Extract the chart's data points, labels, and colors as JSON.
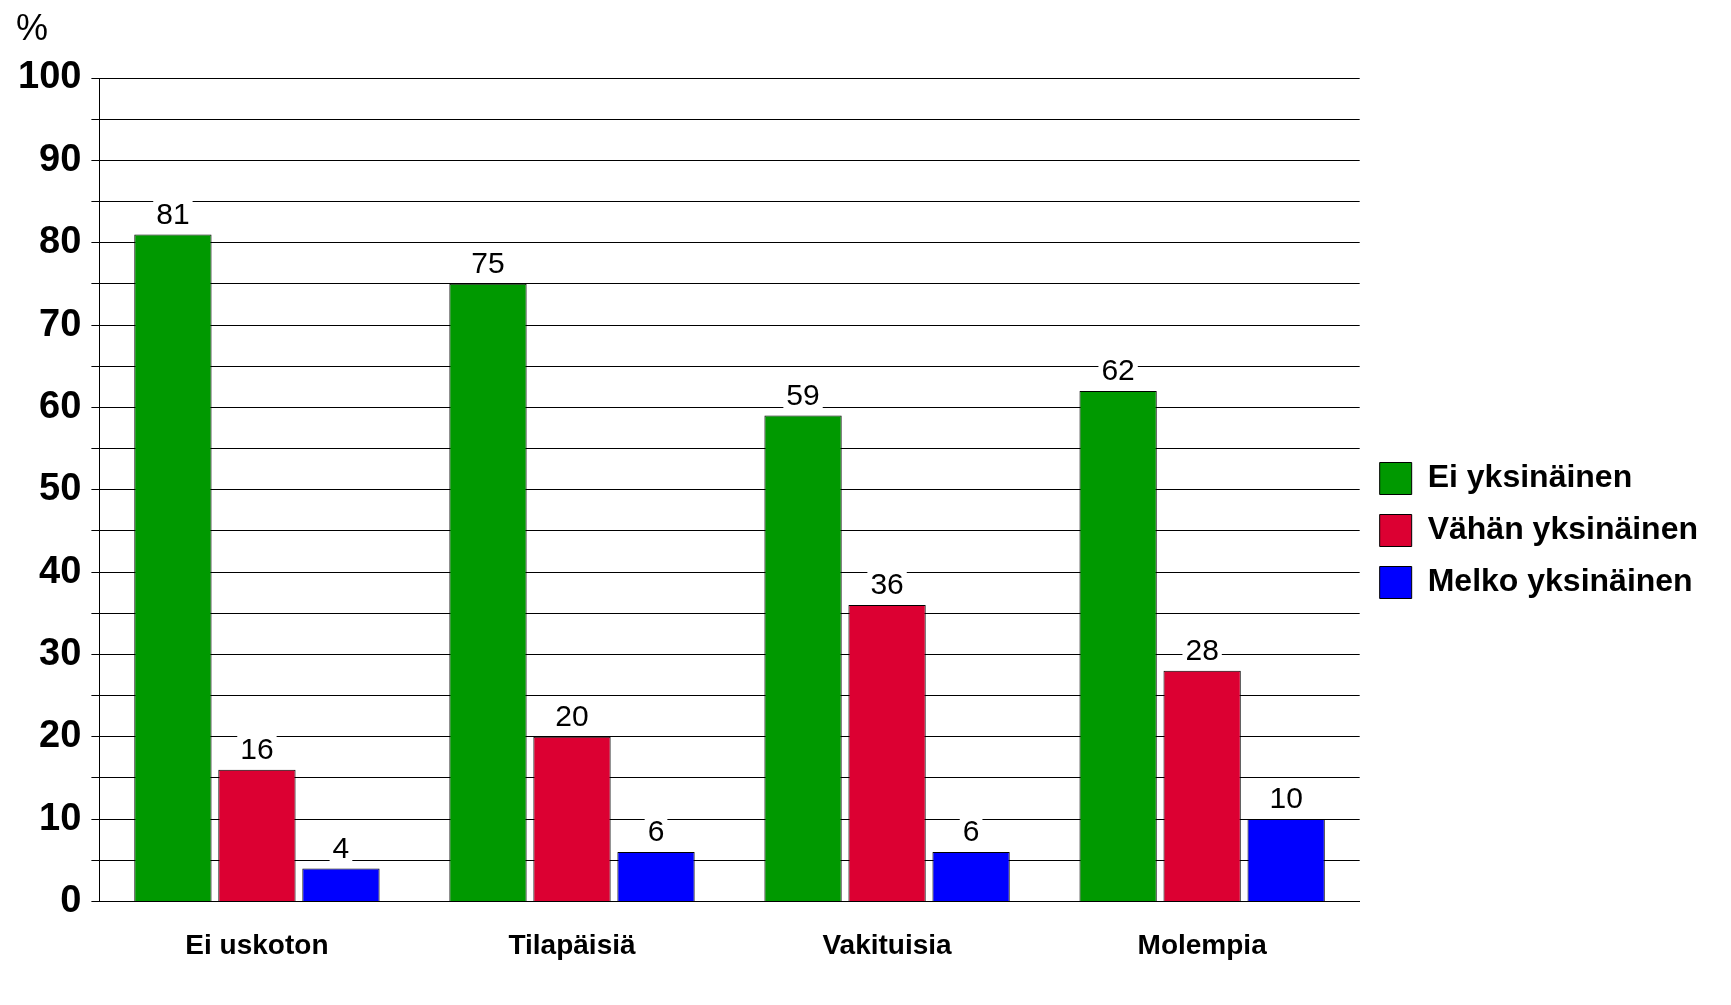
{
  "chart_data": {
    "type": "bar",
    "ylabel": "%",
    "categories": [
      "Ei uskoton",
      "Tilapäisiä",
      "Vakituisia",
      "Molempia"
    ],
    "series": [
      {
        "name": "Ei yksinäinen",
        "color": "#009900",
        "values": [
          81,
          75,
          59,
          62
        ]
      },
      {
        "name": "Vähän yksinäinen",
        "color": "#dc0032",
        "values": [
          16,
          20,
          36,
          28
        ]
      },
      {
        "name": "Melko yksinäinen",
        "color": "#0000ff",
        "values": [
          4,
          6,
          6,
          10
        ]
      }
    ],
    "ylim": [
      0,
      100
    ],
    "yticks": [
      0,
      {
        "value": 5,
        "label": null
      },
      10,
      {
        "value": 15,
        "label": null
      },
      20,
      {
        "value": 25,
        "label": null
      },
      30,
      {
        "value": 35,
        "label": null
      },
      40,
      {
        "value": 45,
        "label": null
      },
      50,
      {
        "value": 55,
        "label": null
      },
      60,
      {
        "value": 65,
        "label": null
      },
      70,
      {
        "value": 75,
        "label": null
      },
      80,
      {
        "value": 85,
        "label": null
      },
      90,
      {
        "value": 95,
        "label": null
      },
      100
    ],
    "grid": "y",
    "legend": "right",
    "data_labels": true
  }
}
